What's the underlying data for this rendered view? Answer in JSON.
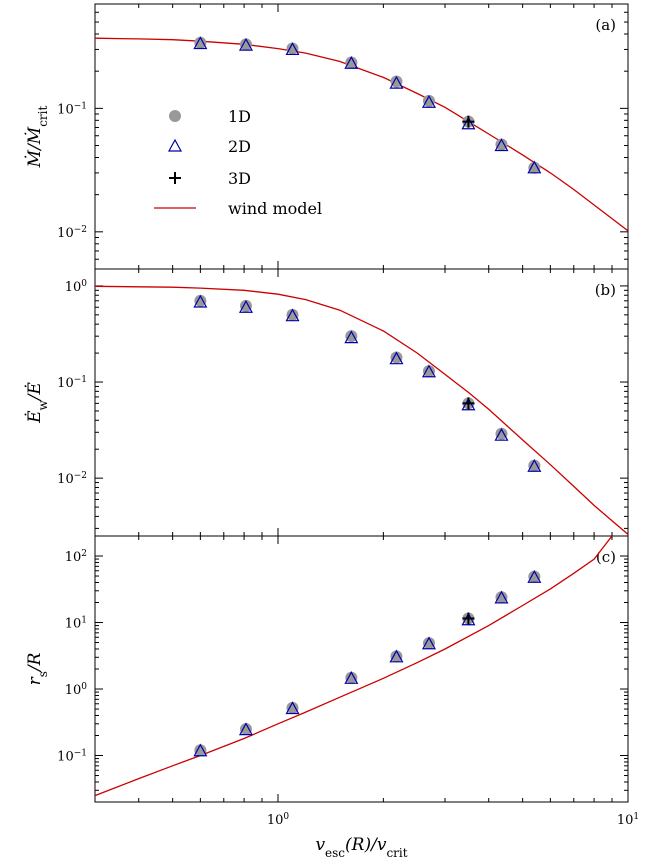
{
  "chart_data": [
    {
      "type": "scatter",
      "panel_label": "(a)",
      "ylabel": "Ṁ/Ṁcrit",
      "xlabel": "",
      "xscale": "log",
      "yscale": "log",
      "xlim": [
        0.3,
        10
      ],
      "ylim": [
        0.005,
        0.7
      ],
      "y_ticks": [
        {
          "v": 0.1,
          "base": "10",
          "exp": "−1"
        },
        {
          "v": 0.01,
          "base": "10",
          "exp": "−2"
        }
      ],
      "series": [
        {
          "name": "1D",
          "marker": "circle",
          "color": "#999999",
          "x": [
            0.6,
            0.81,
            1.1,
            1.62,
            2.18,
            2.7,
            3.5,
            4.35,
            5.4
          ],
          "y": [
            0.34,
            0.33,
            0.305,
            0.235,
            0.165,
            0.115,
            0.078,
            0.051,
            0.033
          ]
        },
        {
          "name": "2D",
          "marker": "triangle",
          "color": "#0000aa",
          "x": [
            0.6,
            0.81,
            1.1,
            1.62,
            2.18,
            2.7,
            3.5,
            4.35,
            5.4
          ],
          "y": [
            0.335,
            0.325,
            0.3,
            0.232,
            0.16,
            0.112,
            0.075,
            0.05,
            0.033
          ]
        },
        {
          "name": "3D",
          "marker": "plus",
          "color": "#000000",
          "x": [
            3.5
          ],
          "y": [
            0.078
          ]
        },
        {
          "name": "wind model",
          "marker": "line",
          "color": "#cc0000",
          "x": [
            0.3,
            0.4,
            0.5,
            0.6,
            0.8,
            1.0,
            1.2,
            1.5,
            2.0,
            2.5,
            3.0,
            4.0,
            5.0,
            6.0,
            7.0,
            8.0,
            9.0,
            10.0
          ],
          "y": [
            0.37,
            0.365,
            0.36,
            0.35,
            0.33,
            0.305,
            0.28,
            0.24,
            0.178,
            0.132,
            0.102,
            0.062,
            0.042,
            0.03,
            0.022,
            0.0165,
            0.0128,
            0.0102
          ]
        }
      ],
      "legend": {
        "position": "center-left",
        "entries": [
          "1D",
          "2D",
          "3D",
          "wind model"
        ]
      }
    },
    {
      "type": "scatter",
      "panel_label": "(b)",
      "ylabel": "Ėw/Ė",
      "xlabel": "",
      "xscale": "log",
      "yscale": "log",
      "xlim": [
        0.3,
        10
      ],
      "ylim": [
        0.0025,
        1.5
      ],
      "y_ticks": [
        {
          "v": 1,
          "base": "10",
          "exp": "0"
        },
        {
          "v": 0.1,
          "base": "10",
          "exp": "−1"
        },
        {
          "v": 0.01,
          "base": "10",
          "exp": "−2"
        }
      ],
      "series": [
        {
          "name": "1D",
          "marker": "circle",
          "color": "#999999",
          "x": [
            0.6,
            0.81,
            1.1,
            1.62,
            2.18,
            2.7,
            3.5,
            4.35,
            5.4
          ],
          "y": [
            0.7,
            0.62,
            0.5,
            0.3,
            0.18,
            0.13,
            0.06,
            0.029,
            0.0135
          ]
        },
        {
          "name": "2D",
          "marker": "triangle",
          "color": "#0000aa",
          "x": [
            0.6,
            0.81,
            1.1,
            1.62,
            2.18,
            2.7,
            3.5,
            4.35,
            5.4
          ],
          "y": [
            0.68,
            0.6,
            0.49,
            0.29,
            0.175,
            0.128,
            0.058,
            0.028,
            0.0133
          ]
        },
        {
          "name": "3D",
          "marker": "plus",
          "color": "#000000",
          "x": [
            3.5
          ],
          "y": [
            0.06
          ]
        },
        {
          "name": "wind model",
          "marker": "line",
          "color": "#cc0000",
          "x": [
            0.3,
            0.4,
            0.5,
            0.6,
            0.8,
            1.0,
            1.2,
            1.5,
            2.0,
            2.5,
            3.0,
            3.5,
            4.0,
            5.0,
            6.0,
            7.0,
            8.0,
            9.0,
            10.0
          ],
          "y": [
            0.99,
            0.98,
            0.97,
            0.95,
            0.9,
            0.82,
            0.72,
            0.56,
            0.34,
            0.2,
            0.12,
            0.078,
            0.052,
            0.025,
            0.0138,
            0.0082,
            0.0052,
            0.0036,
            0.0026
          ]
        }
      ]
    },
    {
      "type": "scatter",
      "panel_label": "(c)",
      "ylabel": "rs/R",
      "xlabel": "vesc(R)/vcrit",
      "xscale": "log",
      "yscale": "log",
      "xlim": [
        0.3,
        10
      ],
      "ylim": [
        0.02,
        200
      ],
      "x_ticks": [
        {
          "v": 1,
          "base": "10",
          "exp": "0"
        },
        {
          "v": 10,
          "base": "10",
          "exp": "1"
        }
      ],
      "y_ticks": [
        {
          "v": 100,
          "base": "10",
          "exp": "2"
        },
        {
          "v": 10,
          "base": "10",
          "exp": "1"
        },
        {
          "v": 1,
          "base": "10",
          "exp": "0"
        },
        {
          "v": 0.1,
          "base": "10",
          "exp": "−1"
        }
      ],
      "series": [
        {
          "name": "1D",
          "marker": "circle",
          "color": "#999999",
          "x": [
            0.6,
            0.81,
            1.1,
            1.62,
            2.18,
            2.7,
            3.5,
            4.35,
            5.4
          ],
          "y": [
            0.12,
            0.25,
            0.52,
            1.48,
            3.1,
            4.9,
            11.5,
            24,
            49
          ]
        },
        {
          "name": "2D",
          "marker": "triangle",
          "color": "#0000aa",
          "x": [
            0.6,
            0.81,
            1.1,
            1.62,
            2.18,
            2.7,
            3.5,
            4.35,
            5.4
          ],
          "y": [
            0.118,
            0.245,
            0.51,
            1.45,
            3.05,
            4.8,
            11,
            23.5,
            48
          ]
        },
        {
          "name": "3D",
          "marker": "plus",
          "color": "#000000",
          "x": [
            3.5
          ],
          "y": [
            11.5
          ]
        },
        {
          "name": "wind model",
          "marker": "line",
          "color": "#cc0000",
          "x": [
            0.3,
            0.4,
            0.5,
            0.6,
            0.8,
            1.0,
            1.2,
            1.5,
            2.0,
            2.5,
            3.0,
            4.0,
            5.0,
            6.0,
            7.0,
            8.0,
            9.0
          ],
          "y": [
            0.025,
            0.045,
            0.07,
            0.1,
            0.18,
            0.3,
            0.45,
            0.75,
            1.45,
            2.5,
            4.0,
            9.0,
            18,
            32,
            55,
            90,
            200
          ]
        }
      ]
    }
  ],
  "x_ticks_bottom": [
    {
      "base": "10",
      "exp": "0"
    },
    {
      "base": "10",
      "exp": "1"
    }
  ],
  "legend": {
    "label_1d": "1D",
    "label_2d": "2D",
    "label_3d": "3D",
    "label_wind": "wind model"
  }
}
